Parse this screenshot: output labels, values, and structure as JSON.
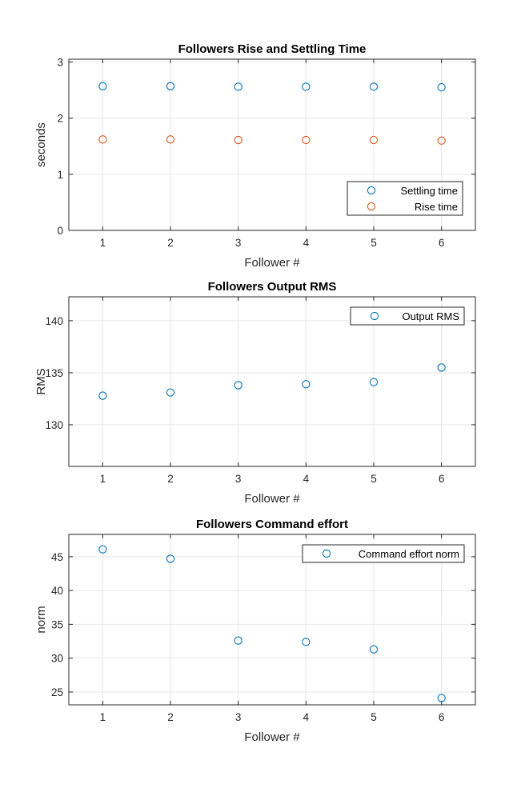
{
  "colors": {
    "series_blue": "#0072BD",
    "series_orange": "#D95319",
    "grid": "#e6e6e6",
    "axis": "#262626"
  },
  "chart_data": [
    {
      "type": "scatter",
      "title": "Followers Rise and Settling Time",
      "xlabel": "Follower #",
      "ylabel": "seconds",
      "xlim": [
        0.5,
        6.5
      ],
      "ylim": [
        0,
        3.05
      ],
      "xticks": [
        1,
        2,
        3,
        4,
        5,
        6
      ],
      "yticks": [
        0,
        1,
        2,
        3
      ],
      "grid": true,
      "legend_location": "bottom-right",
      "series": [
        {
          "name": "Settling time",
          "color": "#0072BD",
          "x": [
            1,
            2,
            3,
            4,
            5,
            6
          ],
          "y": [
            2.57,
            2.57,
            2.56,
            2.56,
            2.56,
            2.55
          ]
        },
        {
          "name": "Rise time",
          "color": "#D95319",
          "x": [
            1,
            2,
            3,
            4,
            5,
            6
          ],
          "y": [
            1.62,
            1.62,
            1.61,
            1.61,
            1.61,
            1.6
          ]
        }
      ]
    },
    {
      "type": "scatter",
      "title": "Followers Output RMS",
      "xlabel": "Follower #",
      "ylabel": "RMS",
      "xlim": [
        0.5,
        6.5
      ],
      "ylim": [
        126,
        142.3
      ],
      "xticks": [
        1,
        2,
        3,
        4,
        5,
        6
      ],
      "yticks": [
        130,
        135,
        140
      ],
      "grid": true,
      "legend_location": "top-right",
      "series": [
        {
          "name": "Output RMS",
          "color": "#0072BD",
          "x": [
            1,
            2,
            3,
            4,
            5,
            6
          ],
          "y": [
            132.8,
            133.1,
            133.8,
            133.9,
            134.1,
            135.5
          ]
        }
      ]
    },
    {
      "type": "scatter",
      "title": "Followers Command effort",
      "xlabel": "Follower #",
      "ylabel": "norm",
      "xlim": [
        0.5,
        6.5
      ],
      "ylim": [
        23.1,
        48.3
      ],
      "xticks": [
        1,
        2,
        3,
        4,
        5,
        6
      ],
      "yticks": [
        25,
        30,
        35,
        40,
        45
      ],
      "grid": true,
      "legend_location": "top-right",
      "series": [
        {
          "name": "Command effort norm",
          "color": "#0072BD",
          "x": [
            1,
            2,
            3,
            4,
            5,
            6
          ],
          "y": [
            46.1,
            44.7,
            32.6,
            32.4,
            31.3,
            24.1
          ]
        }
      ]
    }
  ]
}
